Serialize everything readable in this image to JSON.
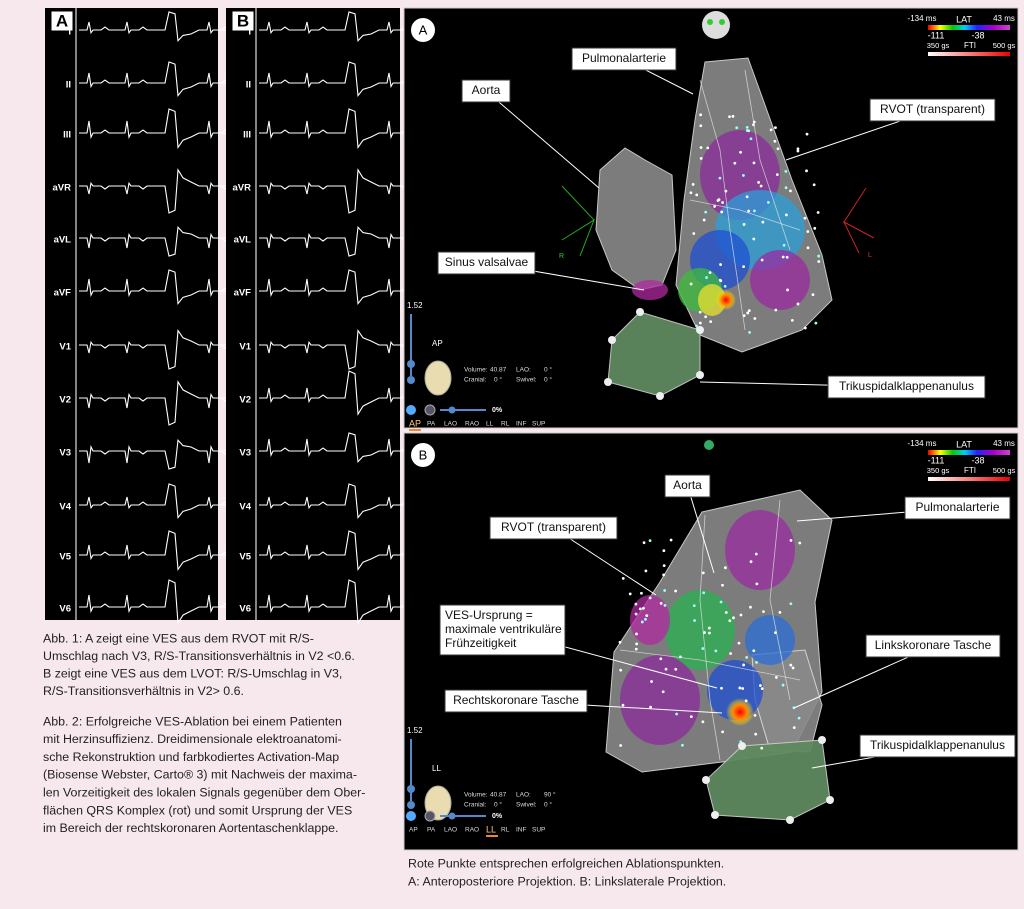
{
  "figure1": {
    "panel_a": {
      "label": "A",
      "leads": [
        "I",
        "II",
        "III",
        "aVR",
        "aVL",
        "aVF",
        "V1",
        "V2",
        "V3",
        "V4",
        "V5",
        "V6"
      ]
    },
    "panel_b": {
      "label": "B",
      "leads": [
        "I",
        "II",
        "III",
        "aVR",
        "aVL",
        "aVF",
        "V1",
        "V2",
        "V3",
        "V4",
        "V5",
        "V6"
      ]
    }
  },
  "captions": {
    "abb1": [
      "Abb. 1: A zeigt eine VES aus dem RVOT mit R/S-",
      "Umschlag nach V3, R/S-Transitionsverhältnis in V2 <0.6.",
      "B zeigt eine VES aus dem LVOT: R/S-Umschlag in V3,",
      "R/S-Transitionsverhältnis in V2> 0.6."
    ],
    "abb2": [
      "Abb. 2: Erfolgreiche VES-Ablation bei einem Patienten",
      "mit Herzinsuffizienz. Dreidimensionale elektroanatomi-",
      "sche Rekonstruktion und farbkodiertes Activation-Map",
      "(Biosense Webster, Carto® 3) mit Nachweis der maxima-",
      "len Vorzeitigkeit des lokalen Signals gegenüber dem Ober-",
      "flächen QRS Komplex (rot) und somit Ursprung der VES",
      "im Bereich der rechtskoronaren Aortentaschenklappe."
    ]
  },
  "map_a": {
    "label": "A",
    "annotations": [
      [
        "Pulmonalarterie"
      ],
      [
        "Aorta"
      ],
      [
        "RVOT (transparent)"
      ],
      [
        "Sinus valsalvae"
      ],
      [
        "Trikuspidalklappenanulus"
      ]
    ],
    "legend": {
      "min": "-134 ms",
      "title": "LAT",
      "max": "43 ms",
      "low": "-111",
      "high": "-38",
      "fti_min": "350 gs",
      "fti_title": "FTI",
      "fti_max": "500 gs"
    },
    "scale": "1.52",
    "view_label": "AP",
    "info": [
      "Volume:",
      "40.87",
      "LAO:",
      "0 °",
      "Cranial:",
      "0 °",
      "Swivel:",
      "0 °"
    ],
    "zoom": "0%",
    "views": [
      "AP",
      "PA",
      "LAO",
      "RAO",
      "LL",
      "RL",
      "INF",
      "SUP"
    ],
    "axes": [
      "R",
      "L"
    ]
  },
  "map_b": {
    "label": "B",
    "annotations": [
      [
        "Aorta"
      ],
      [
        "Pulmonalarterie"
      ],
      [
        "RVOT (transparent)"
      ],
      [
        "VES-Ursprung =",
        "maximale ventrikuläre",
        "Frühzeitigkeit"
      ],
      [
        "Linkskoronare Tasche"
      ],
      [
        "Rechtskoronare Tasche"
      ],
      [
        "Trikuspidalklappenanulus"
      ]
    ],
    "legend": {
      "min": "-134 ms",
      "title": "LAT",
      "max": "43 ms",
      "low": "-111",
      "high": "-38",
      "fti_min": "350 gs",
      "fti_title": "FTI",
      "fti_max": "500 gs"
    },
    "scale": "1.52",
    "view_label": "LL",
    "info": [
      "Volume:",
      "40.87",
      "LAO:",
      "90 °",
      "Cranial:",
      "0 °",
      "Swivel:",
      "0 °"
    ],
    "zoom": "0%",
    "views": [
      "AP",
      "PA",
      "LAO",
      "RAO",
      "LL",
      "RL",
      "INF",
      "SUP"
    ]
  },
  "footer": [
    "Rote Punkte entsprechen erfolgreichen Ablationspunkten.",
    "A: Anteroposteriore Projektion. B: Linkslaterale Projektion."
  ]
}
